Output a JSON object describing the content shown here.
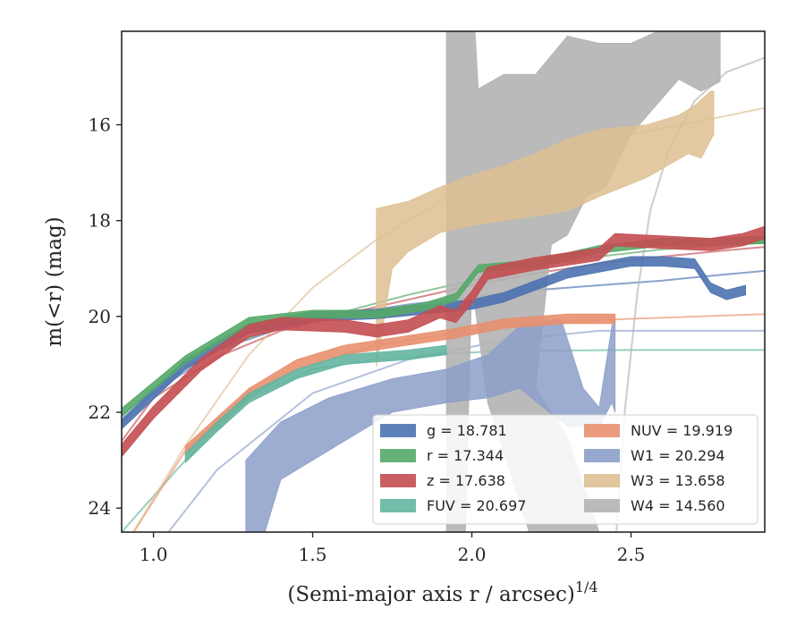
{
  "chart_data": {
    "type": "line",
    "xlabel": "(Semi-major axis r / arcsec)",
    "xlabel_power": "1/4",
    "ylabel": "m(<r) (mag)",
    "xlim": [
      0.9,
      2.92
    ],
    "ylim": [
      24.5,
      14.05
    ],
    "y_inverted": true,
    "x_ticks": [
      {
        "value": 1.0,
        "label": "1.0"
      },
      {
        "value": 1.5,
        "label": "1.5"
      },
      {
        "value": 2.0,
        "label": "2.0"
      },
      {
        "value": 2.5,
        "label": "2.5"
      }
    ],
    "y_ticks": [
      {
        "value": 16,
        "label": "16"
      },
      {
        "value": 18,
        "label": "18"
      },
      {
        "value": 20,
        "label": "20"
      },
      {
        "value": 22,
        "label": "22"
      },
      {
        "value": 24,
        "label": "24"
      }
    ],
    "legend_position": "lower-right",
    "series": [
      {
        "name": "g",
        "legend_label": "g = 18.781",
        "color": "#4c72b0",
        "band": [
          [
            0.9,
            22.25
          ],
          [
            1.1,
            21.0
          ],
          [
            1.3,
            20.25
          ],
          [
            1.5,
            20.0
          ],
          [
            1.7,
            19.95
          ],
          [
            1.85,
            19.85
          ],
          [
            2.0,
            19.75
          ],
          [
            2.1,
            19.6
          ],
          [
            2.3,
            19.1
          ],
          [
            2.5,
            18.85
          ],
          [
            2.6,
            18.85
          ],
          [
            2.7,
            18.9
          ],
          [
            2.75,
            19.4
          ],
          [
            2.8,
            19.55
          ],
          [
            2.86,
            19.45
          ]
        ],
        "band_halfwidth": 0.1,
        "fit": [
          [
            0.9,
            22.2
          ],
          [
            1.0,
            21.6
          ],
          [
            1.2,
            20.7
          ],
          [
            1.4,
            20.25
          ],
          [
            1.6,
            19.95
          ],
          [
            1.8,
            19.75
          ],
          [
            2.0,
            19.6
          ],
          [
            2.2,
            19.45
          ],
          [
            2.4,
            19.35
          ],
          [
            2.6,
            19.25
          ],
          [
            2.8,
            19.12
          ],
          [
            2.92,
            19.05
          ]
        ]
      },
      {
        "name": "r",
        "legend_label": "r = 17.344",
        "color": "#55a868",
        "band": [
          [
            0.9,
            22.0
          ],
          [
            1.1,
            20.9
          ],
          [
            1.3,
            20.1
          ],
          [
            1.5,
            19.95
          ],
          [
            1.7,
            19.95
          ],
          [
            1.85,
            19.8
          ],
          [
            1.95,
            19.6
          ],
          [
            2.02,
            19.0
          ],
          [
            2.2,
            18.9
          ],
          [
            2.4,
            18.6
          ],
          [
            2.6,
            18.45
          ],
          [
            2.75,
            18.45
          ],
          [
            2.92,
            18.4
          ]
        ],
        "band_halfwidth": 0.08,
        "fit": [
          [
            0.9,
            22.1
          ],
          [
            1.0,
            21.5
          ],
          [
            1.2,
            20.7
          ],
          [
            1.4,
            20.2
          ],
          [
            1.6,
            19.9
          ],
          [
            1.8,
            19.55
          ],
          [
            2.0,
            19.25
          ],
          [
            2.2,
            18.95
          ],
          [
            2.4,
            18.75
          ],
          [
            2.6,
            18.6
          ],
          [
            2.8,
            18.5
          ],
          [
            2.92,
            18.45
          ]
        ]
      },
      {
        "name": "z",
        "legend_label": "z = 17.638",
        "color": "#c44e52",
        "band": [
          [
            0.9,
            22.8
          ],
          [
            1.0,
            22.0
          ],
          [
            1.15,
            21.0
          ],
          [
            1.3,
            20.3
          ],
          [
            1.4,
            20.15
          ],
          [
            1.6,
            20.2
          ],
          [
            1.7,
            20.3
          ],
          [
            1.8,
            20.2
          ],
          [
            1.9,
            19.9
          ],
          [
            1.95,
            20.0
          ],
          [
            2.0,
            19.6
          ],
          [
            2.05,
            19.1
          ],
          [
            2.2,
            18.9
          ],
          [
            2.4,
            18.7
          ],
          [
            2.45,
            18.4
          ],
          [
            2.6,
            18.45
          ],
          [
            2.75,
            18.5
          ],
          [
            2.85,
            18.4
          ],
          [
            2.92,
            18.25
          ]
        ],
        "band_halfwidth": 0.13,
        "fit": [
          [
            0.9,
            22.6
          ],
          [
            1.0,
            21.7
          ],
          [
            1.2,
            20.85
          ],
          [
            1.4,
            20.3
          ],
          [
            1.6,
            19.95
          ],
          [
            1.8,
            19.65
          ],
          [
            2.0,
            19.35
          ],
          [
            2.2,
            19.1
          ],
          [
            2.4,
            18.9
          ],
          [
            2.6,
            18.75
          ],
          [
            2.8,
            18.62
          ],
          [
            2.92,
            18.55
          ]
        ]
      },
      {
        "name": "FUV",
        "legend_label": "FUV = 20.697",
        "color": "#64b5a0",
        "band": [
          [
            1.1,
            22.95
          ],
          [
            1.2,
            22.3
          ],
          [
            1.3,
            21.7
          ],
          [
            1.45,
            21.2
          ],
          [
            1.6,
            20.9
          ],
          [
            1.8,
            20.8
          ],
          [
            1.92,
            20.7
          ]
        ],
        "band_halfwidth": 0.1,
        "fit": [
          [
            0.9,
            24.5
          ],
          [
            1.1,
            23.0
          ],
          [
            1.3,
            21.7
          ],
          [
            1.5,
            21.1
          ],
          [
            1.7,
            20.9
          ],
          [
            1.9,
            20.78
          ],
          [
            2.1,
            20.72
          ],
          [
            2.5,
            20.7
          ],
          [
            2.92,
            20.7
          ]
        ]
      },
      {
        "name": "NUV",
        "legend_label": "NUV = 19.919",
        "color": "#e8906f",
        "band": [
          [
            1.1,
            22.8
          ],
          [
            1.2,
            22.2
          ],
          [
            1.3,
            21.6
          ],
          [
            1.45,
            21.0
          ],
          [
            1.6,
            20.7
          ],
          [
            1.8,
            20.5
          ],
          [
            1.95,
            20.35
          ],
          [
            2.1,
            20.15
          ],
          [
            2.3,
            20.05
          ],
          [
            2.45,
            20.05
          ]
        ],
        "band_halfwidth": 0.1,
        "fit": [
          [
            0.9,
            24.9
          ],
          [
            1.1,
            22.8
          ],
          [
            1.3,
            21.6
          ],
          [
            1.5,
            21.0
          ],
          [
            1.7,
            20.6
          ],
          [
            1.9,
            20.4
          ],
          [
            2.1,
            20.2
          ],
          [
            2.3,
            20.1
          ],
          [
            2.5,
            20.05
          ],
          [
            2.92,
            19.95
          ]
        ]
      },
      {
        "name": "W1",
        "legend_label": "W1 = 20.294",
        "color": "#8c9fc9",
        "band_upper": [
          [
            1.29,
            23.0
          ],
          [
            1.4,
            22.2
          ],
          [
            1.55,
            21.7
          ],
          [
            1.75,
            21.3
          ],
          [
            1.92,
            21.1
          ],
          [
            2.05,
            20.8
          ],
          [
            2.15,
            20.2
          ],
          [
            2.28,
            20.05
          ],
          [
            2.35,
            21.5
          ],
          [
            2.4,
            21.9
          ],
          [
            2.44,
            20.2
          ],
          [
            2.45,
            20.0
          ]
        ],
        "band_lower": [
          [
            2.45,
            22.0
          ],
          [
            2.44,
            21.8
          ],
          [
            2.4,
            22.3
          ],
          [
            2.3,
            22.3
          ],
          [
            2.15,
            21.5
          ],
          [
            2.05,
            21.7
          ],
          [
            1.92,
            21.8
          ],
          [
            1.75,
            22.0
          ],
          [
            1.55,
            22.8
          ],
          [
            1.4,
            23.4
          ],
          [
            1.35,
            24.5
          ],
          [
            1.29,
            24.5
          ]
        ],
        "fit": [
          [
            1.0,
            24.9
          ],
          [
            1.2,
            23.2
          ],
          [
            1.5,
            21.6
          ],
          [
            1.8,
            20.9
          ],
          [
            2.1,
            20.5
          ],
          [
            2.4,
            20.3
          ],
          [
            2.92,
            20.3
          ]
        ]
      },
      {
        "name": "W3",
        "legend_label": "W3 = 13.658",
        "color": "#ddbf92",
        "band_upper": [
          [
            1.7,
            17.75
          ],
          [
            1.8,
            17.6
          ],
          [
            1.9,
            17.3
          ],
          [
            2.0,
            17.05
          ],
          [
            2.1,
            16.85
          ],
          [
            2.2,
            16.6
          ],
          [
            2.3,
            16.3
          ],
          [
            2.4,
            16.1
          ],
          [
            2.55,
            16.0
          ],
          [
            2.65,
            15.8
          ],
          [
            2.7,
            15.6
          ],
          [
            2.75,
            15.3
          ],
          [
            2.76,
            15.3
          ]
        ],
        "band_lower": [
          [
            2.76,
            16.2
          ],
          [
            2.72,
            16.7
          ],
          [
            2.68,
            16.6
          ],
          [
            2.55,
            17.1
          ],
          [
            2.4,
            17.5
          ],
          [
            2.3,
            17.8
          ],
          [
            2.2,
            17.9
          ],
          [
            2.1,
            18.0
          ],
          [
            2.0,
            18.1
          ],
          [
            1.9,
            18.25
          ],
          [
            1.8,
            18.65
          ],
          [
            1.75,
            19.0
          ],
          [
            1.7,
            21.05
          ]
        ],
        "fit": [
          [
            0.9,
            24.9
          ],
          [
            1.1,
            22.7
          ],
          [
            1.3,
            20.8
          ],
          [
            1.5,
            19.4
          ],
          [
            1.7,
            18.4
          ],
          [
            1.9,
            17.6
          ],
          [
            2.1,
            17.0
          ],
          [
            2.3,
            16.55
          ],
          [
            2.5,
            16.2
          ],
          [
            2.7,
            15.95
          ],
          [
            2.92,
            15.65
          ]
        ]
      },
      {
        "name": "W4",
        "legend_label": "W4 = 14.560",
        "color": "#b2b2b2",
        "band_upper": [
          [
            1.92,
            14.05
          ],
          [
            2.01,
            14.05
          ],
          [
            2.02,
            15.25
          ],
          [
            2.1,
            14.95
          ],
          [
            2.2,
            14.95
          ],
          [
            2.3,
            14.15
          ],
          [
            2.4,
            14.3
          ],
          [
            2.5,
            14.3
          ],
          [
            2.6,
            14.0
          ],
          [
            2.7,
            14.0
          ],
          [
            2.78,
            14.05
          ],
          [
            2.78,
            15.1
          ]
        ],
        "band_lower": [
          [
            2.78,
            15.1
          ],
          [
            2.72,
            15.3
          ],
          [
            2.65,
            15.05
          ],
          [
            2.5,
            16.2
          ],
          [
            2.42,
            17.3
          ],
          [
            2.36,
            17.5
          ],
          [
            2.3,
            18.3
          ],
          [
            2.25,
            18.5
          ],
          [
            2.2,
            21.5
          ],
          [
            2.3,
            22.5
          ],
          [
            2.4,
            24.5
          ],
          [
            2.18,
            24.5
          ],
          [
            2.05,
            21.8
          ],
          [
            2.0,
            19.3
          ],
          [
            1.98,
            24.5
          ],
          [
            1.92,
            24.5
          ]
        ],
        "fit": [
          [
            2.45,
            24.9
          ],
          [
            2.48,
            22.0
          ],
          [
            2.52,
            19.5
          ],
          [
            2.56,
            17.8
          ],
          [
            2.62,
            16.5
          ],
          [
            2.7,
            15.5
          ],
          [
            2.8,
            14.9
          ],
          [
            2.92,
            14.6
          ]
        ]
      }
    ]
  }
}
